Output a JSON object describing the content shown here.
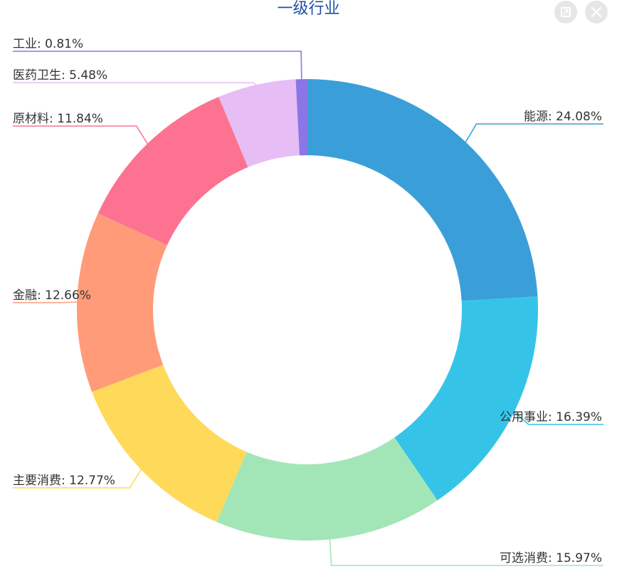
{
  "title": "一级行业",
  "buttons": {
    "restore_icon": "restore-icon",
    "close_icon": "close-icon"
  },
  "chart_data": {
    "type": "pie",
    "donut": true,
    "title": "一级行业",
    "legend": "none",
    "slices": [
      {
        "name": "能源",
        "value": 24.08,
        "label": "能源: 24.08%",
        "color": "#3a9fd9",
        "side": "right"
      },
      {
        "name": "公用事业",
        "value": 16.39,
        "label": "公用事业: 16.39%",
        "color": "#35c4e8",
        "side": "right"
      },
      {
        "name": "可选消费",
        "value": 15.97,
        "label": "可选消费: 15.97%",
        "color": "#a2e6b8",
        "side": "right"
      },
      {
        "name": "主要消费",
        "value": 12.77,
        "label": "主要消费: 12.77%",
        "color": "#ffd95a",
        "side": "left"
      },
      {
        "name": "金融",
        "value": 12.66,
        "label": "金融: 12.66%",
        "color": "#ff9b79",
        "side": "left"
      },
      {
        "name": "原材料",
        "value": 11.84,
        "label": "原材料: 11.84%",
        "color": "#fd7290",
        "side": "left"
      },
      {
        "name": "医药卫生",
        "value": 5.48,
        "label": "医药卫生: 5.48%",
        "color": "#e6bdf4",
        "side": "left"
      },
      {
        "name": "工业",
        "value": 0.81,
        "label": "工业: 0.81%",
        "color": "#8a76e6",
        "side": "left"
      }
    ]
  }
}
